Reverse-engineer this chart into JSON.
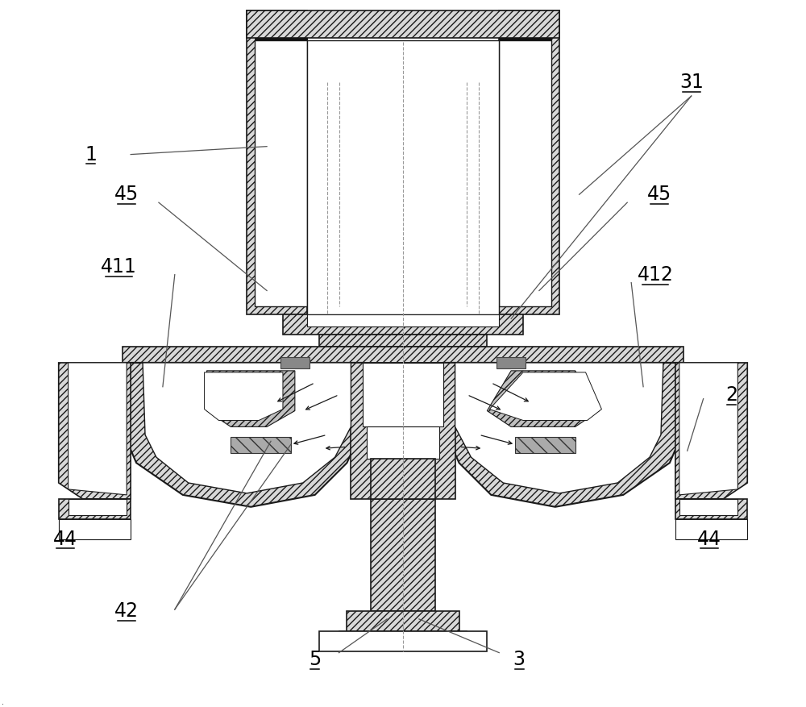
{
  "fig_width": 10.0,
  "fig_height": 8.77,
  "label_fontsize": 17,
  "hatch_fc": "#d8d8d8",
  "line_color": "#1a1a1a",
  "bg_color": "#ffffff"
}
